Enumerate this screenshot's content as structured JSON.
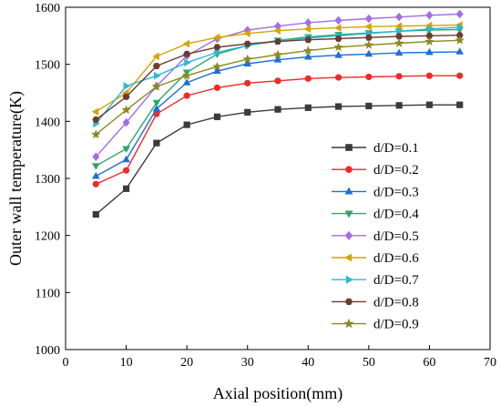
{
  "chart_data": {
    "type": "line",
    "xlabel": "Axial position(mm)",
    "ylabel": "Outer wall temperature(K)",
    "xlim": [
      0,
      70
    ],
    "ylim": [
      1000,
      1600
    ],
    "xticks": [
      0,
      10,
      20,
      30,
      40,
      50,
      60,
      70
    ],
    "yticks": [
      1000,
      1100,
      1200,
      1300,
      1400,
      1500,
      1600
    ],
    "grid": false,
    "legend_position": "bottom-right",
    "x": [
      5,
      10,
      15,
      20,
      25,
      30,
      35,
      40,
      45,
      50,
      55,
      60,
      65
    ],
    "series": [
      {
        "name": "d/D=0.1",
        "color": "#3a3a3a",
        "marker": "square",
        "values": [
          1237,
          1282,
          1362,
          1394,
          1408,
          1416,
          1421,
          1424,
          1426,
          1427,
          1428,
          1429,
          1429
        ]
      },
      {
        "name": "d/D=0.2",
        "color": "#ee2a2a",
        "marker": "circle",
        "values": [
          1290,
          1314,
          1413,
          1445,
          1459,
          1467,
          1471,
          1475,
          1477,
          1478,
          1479,
          1480,
          1480
        ]
      },
      {
        "name": "d/D=0.3",
        "color": "#1e6fd6",
        "marker": "triangle-up",
        "values": [
          1304,
          1333,
          1422,
          1468,
          1488,
          1501,
          1508,
          1513,
          1516,
          1518,
          1520,
          1521,
          1522
        ]
      },
      {
        "name": "d/D=0.4",
        "color": "#2aa86a",
        "marker": "triangle-down",
        "values": [
          1322,
          1352,
          1433,
          1486,
          1518,
          1533,
          1542,
          1548,
          1552,
          1555,
          1558,
          1560,
          1561
        ]
      },
      {
        "name": "d/D=0.5",
        "color": "#a36be6",
        "marker": "diamond",
        "values": [
          1338,
          1398,
          1462,
          1515,
          1545,
          1560,
          1567,
          1573,
          1577,
          1580,
          1583,
          1586,
          1588
        ]
      },
      {
        "name": "d/D=0.6",
        "color": "#d4a400",
        "marker": "triangle-left",
        "values": [
          1417,
          1450,
          1514,
          1536,
          1547,
          1554,
          1559,
          1562,
          1564,
          1566,
          1567,
          1568,
          1569
        ]
      },
      {
        "name": "d/D=0.7",
        "color": "#2ab9d6",
        "marker": "triangle-right",
        "values": [
          1396,
          1462,
          1480,
          1503,
          1521,
          1533,
          1541,
          1546,
          1550,
          1554,
          1558,
          1562,
          1565
        ]
      },
      {
        "name": "d/D=0.8",
        "color": "#6b3b2e",
        "marker": "hexagon",
        "values": [
          1403,
          1443,
          1497,
          1518,
          1530,
          1536,
          1540,
          1543,
          1545,
          1547,
          1549,
          1550,
          1551
        ]
      },
      {
        "name": "d/D=0.9",
        "color": "#8c8a1e",
        "marker": "star",
        "values": [
          1377,
          1420,
          1461,
          1480,
          1496,
          1509,
          1517,
          1524,
          1530,
          1534,
          1537,
          1540,
          1542
        ]
      }
    ]
  }
}
